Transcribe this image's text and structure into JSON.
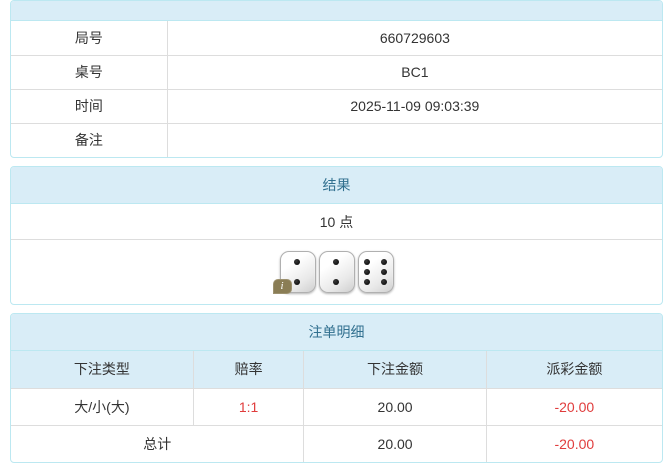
{
  "colors": {
    "header_bg": "#d9edf7",
    "header_text": "#31708f",
    "panel_border": "#bce8f1",
    "row_border": "#dddddd",
    "text": "#333333",
    "negative_red": "#e03c3c",
    "info_tag_olive": "#8a7d55"
  },
  "info_panel": {
    "rows": [
      {
        "label": "局号",
        "value": "660729603"
      },
      {
        "label": "桌号",
        "value": "BC1"
      },
      {
        "label": "时间",
        "value": "2025-11-09 09:03:39"
      },
      {
        "label": "备注",
        "value": ""
      }
    ]
  },
  "result_panel": {
    "title": "结果",
    "points": "10 点",
    "dice": [
      2,
      2,
      6
    ],
    "info_icon_label": "i"
  },
  "bets_panel": {
    "title": "注单明细",
    "columns": [
      "下注类型",
      "赔率",
      "下注金额",
      "派彩金额"
    ],
    "rows": [
      {
        "type": "大/小(大)",
        "odds": "1:1",
        "bet": "20.00",
        "payout": "-20.00"
      }
    ],
    "total_label": "总计",
    "total_bet": "20.00",
    "total_payout": "-20.00"
  }
}
